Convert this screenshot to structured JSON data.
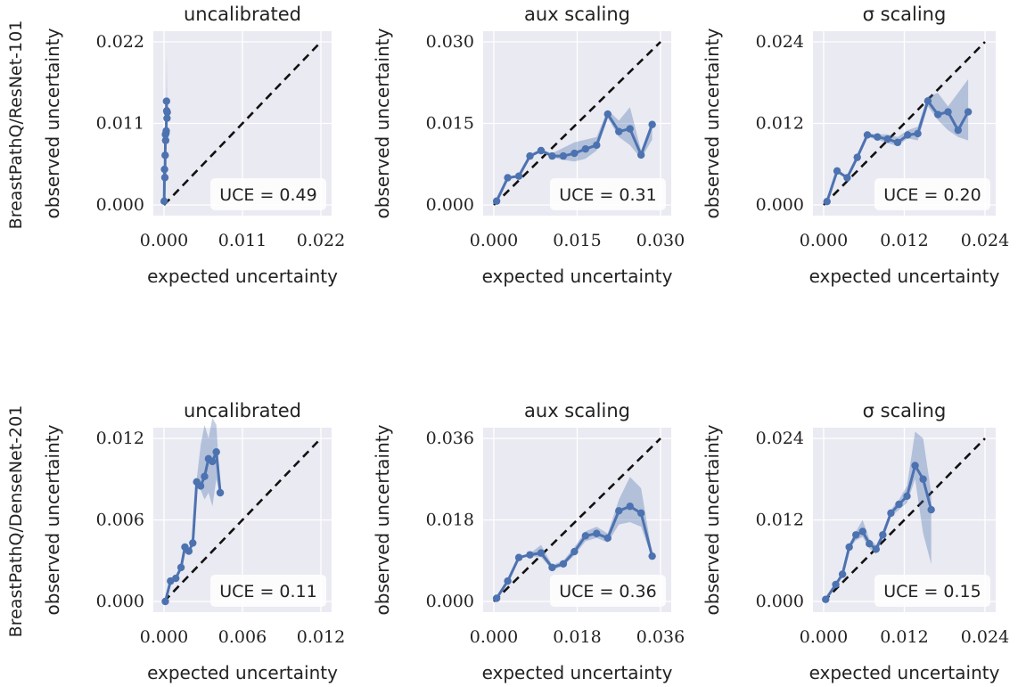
{
  "figure": {
    "row_labels": [
      "BreastPathQ/ResNet-101",
      "BreastPathQ/DenseNet-201"
    ],
    "colors": {
      "panel_bg": "#eaeaf2",
      "grid": "#ffffff",
      "line": "#4c72b0",
      "band": "#4c72b0",
      "diagonal": "#111111"
    }
  },
  "chart_data": [
    {
      "type": "line",
      "title": "uncalibrated",
      "xlabel": "expected uncertainty",
      "ylabel": "observed uncertainty",
      "xlim": [
        0,
        0.022
      ],
      "ylim": [
        0,
        0.022
      ],
      "xticks": [
        "0.000",
        "0.011",
        "0.022"
      ],
      "yticks": [
        "0.000",
        "0.011",
        "0.022"
      ],
      "annotation": "UCE = 0.49",
      "x": [
        2e-05,
        7e-05,
        0.00012,
        0.00016,
        0.0002,
        0.00023,
        0.00027,
        0.00031,
        0.00035,
        0.00038,
        0.00042,
        0.00045
      ],
      "y": [
        0.0005,
        0.0048,
        0.0037,
        0.0067,
        0.0095,
        0.0087,
        0.0097,
        0.01,
        0.014,
        0.0127,
        0.0117,
        0.0125
      ],
      "band_lower": [
        0.0005,
        0.0048,
        0.0037,
        0.0067,
        0.0093,
        0.0085,
        0.0095,
        0.0098,
        0.0105,
        0.011,
        0.0108,
        0.0115
      ],
      "band_upper": [
        0.0005,
        0.0048,
        0.0037,
        0.0067,
        0.0097,
        0.009,
        0.01,
        0.0102,
        0.0175,
        0.021,
        0.014,
        0.0135
      ],
      "diagonal": true
    },
    {
      "type": "line",
      "title": "aux scaling",
      "xlabel": "expected uncertainty",
      "ylabel": "observed uncertainty",
      "xlim": [
        0,
        0.03
      ],
      "ylim": [
        0,
        0.03
      ],
      "xticks": [
        "0.000",
        "0.015",
        "0.030"
      ],
      "yticks": [
        "0.000",
        "0.015",
        "0.030"
      ],
      "annotation": "UCE = 0.31",
      "x": [
        0.0005,
        0.0025,
        0.0045,
        0.0065,
        0.0085,
        0.0105,
        0.0125,
        0.0145,
        0.0165,
        0.0185,
        0.0205,
        0.0225,
        0.0245,
        0.0265,
        0.0285
      ],
      "y": [
        0.0007,
        0.005,
        0.0053,
        0.009,
        0.01,
        0.009,
        0.009,
        0.0095,
        0.0103,
        0.011,
        0.0167,
        0.0135,
        0.014,
        0.0092,
        0.0148
      ],
      "band_lower": [
        0.0007,
        0.005,
        0.0053,
        0.0088,
        0.0098,
        0.0087,
        0.0083,
        0.008,
        0.0085,
        0.01,
        0.016,
        0.0125,
        0.011,
        0.0085,
        0.012
      ],
      "band_upper": [
        0.0007,
        0.005,
        0.0053,
        0.0092,
        0.0102,
        0.0095,
        0.0105,
        0.0115,
        0.012,
        0.0125,
        0.0175,
        0.0155,
        0.018,
        0.01,
        0.0155
      ],
      "diagonal": true
    },
    {
      "type": "line",
      "title": "σ scaling",
      "xlabel": "expected uncertainty",
      "ylabel": "observed uncertainty",
      "xlim": [
        0,
        0.024
      ],
      "ylim": [
        0,
        0.024
      ],
      "xticks": [
        "0.000",
        "0.012",
        "0.024"
      ],
      "yticks": [
        "0.000",
        "0.012",
        "0.024"
      ],
      "annotation": "UCE = 0.20",
      "x": [
        0.0005,
        0.002,
        0.0035,
        0.005,
        0.0065,
        0.008,
        0.0095,
        0.011,
        0.0125,
        0.014,
        0.0155,
        0.017,
        0.0185,
        0.02,
        0.0215
      ],
      "y": [
        0.0005,
        0.005,
        0.004,
        0.007,
        0.0103,
        0.01,
        0.0097,
        0.0092,
        0.0103,
        0.0105,
        0.0153,
        0.0133,
        0.0137,
        0.011,
        0.0137
      ],
      "band_lower": [
        0.0005,
        0.005,
        0.004,
        0.007,
        0.01,
        0.0096,
        0.0091,
        0.0087,
        0.0098,
        0.0095,
        0.0145,
        0.0125,
        0.011,
        0.01,
        0.0095
      ],
      "band_upper": [
        0.0005,
        0.005,
        0.004,
        0.007,
        0.0106,
        0.0104,
        0.0104,
        0.01,
        0.011,
        0.0115,
        0.016,
        0.0165,
        0.0145,
        0.0165,
        0.0185
      ],
      "diagonal": true
    },
    {
      "type": "line",
      "title": "uncalibrated",
      "xlabel": "expected uncertainty",
      "ylabel": "observed uncertainty",
      "xlim": [
        0,
        0.012
      ],
      "ylim": [
        0,
        0.012
      ],
      "xticks": [
        "0.000",
        "0.006",
        "0.012"
      ],
      "yticks": [
        "0.000",
        "0.006",
        "0.012"
      ],
      "annotation": "UCE = 0.11",
      "x": [
        0.0001,
        0.0005,
        0.0009,
        0.0013,
        0.0016,
        0.0019,
        0.0022,
        0.0025,
        0.0028,
        0.0031,
        0.0034,
        0.0037,
        0.004,
        0.0043
      ],
      "y": [
        0.0,
        0.0015,
        0.0017,
        0.0025,
        0.004,
        0.0037,
        0.0043,
        0.0088,
        0.0085,
        0.0092,
        0.0105,
        0.0103,
        0.011,
        0.008
      ],
      "band_lower": [
        0.0,
        0.0015,
        0.0017,
        0.0025,
        0.0038,
        0.0035,
        0.0041,
        0.0085,
        0.0082,
        0.0075,
        0.008,
        0.007,
        0.009,
        0.0078
      ],
      "band_upper": [
        0.0,
        0.0015,
        0.0017,
        0.0025,
        0.0042,
        0.0039,
        0.0045,
        0.009,
        0.0115,
        0.013,
        0.012,
        0.0135,
        0.013,
        0.0082
      ],
      "diagonal": true
    },
    {
      "type": "line",
      "title": "aux scaling",
      "xlabel": "expected uncertainty",
      "ylabel": "observed uncertainty",
      "xlim": [
        0,
        0.036
      ],
      "ylim": [
        0,
        0.036
      ],
      "xticks": [
        "0.000",
        "0.018",
        "0.036"
      ],
      "yticks": [
        "0.000",
        "0.018",
        "0.036"
      ],
      "annotation": "UCE = 0.36",
      "x": [
        0.0006,
        0.003,
        0.0054,
        0.0078,
        0.0102,
        0.0126,
        0.015,
        0.0174,
        0.0198,
        0.0222,
        0.0246,
        0.027,
        0.0294,
        0.0318,
        0.0342
      ],
      "y": [
        0.0007,
        0.0045,
        0.0097,
        0.0103,
        0.0107,
        0.0075,
        0.0083,
        0.011,
        0.0145,
        0.015,
        0.014,
        0.02,
        0.021,
        0.0195,
        0.01
      ],
      "band_lower": [
        0.0007,
        0.0045,
        0.0097,
        0.01,
        0.0098,
        0.007,
        0.0078,
        0.0102,
        0.0133,
        0.014,
        0.013,
        0.017,
        0.0175,
        0.0165,
        0.0095
      ],
      "band_upper": [
        0.0007,
        0.0045,
        0.0097,
        0.0106,
        0.0125,
        0.008,
        0.009,
        0.012,
        0.0155,
        0.0165,
        0.015,
        0.0225,
        0.0275,
        0.025,
        0.0105
      ],
      "diagonal": true
    },
    {
      "type": "line",
      "title": "σ scaling",
      "xlabel": "expected uncertainty",
      "ylabel": "observed uncertainty",
      "xlim": [
        0,
        0.024
      ],
      "ylim": [
        0,
        0.024
      ],
      "xticks": [
        "0.000",
        "0.012",
        "0.024"
      ],
      "yticks": [
        "0.000",
        "0.012",
        "0.024"
      ],
      "annotation": "UCE = 0.15",
      "x": [
        0.0003,
        0.0018,
        0.0028,
        0.0038,
        0.0048,
        0.0058,
        0.0068,
        0.0078,
        0.0088,
        0.01,
        0.0112,
        0.0124,
        0.0136,
        0.0148,
        0.016
      ],
      "y": [
        0.0003,
        0.0025,
        0.004,
        0.008,
        0.0098,
        0.0103,
        0.0085,
        0.0077,
        0.0098,
        0.013,
        0.0143,
        0.0155,
        0.02,
        0.018,
        0.0135
      ],
      "band_lower": [
        0.0003,
        0.0025,
        0.004,
        0.0077,
        0.009,
        0.0095,
        0.0078,
        0.007,
        0.0093,
        0.0125,
        0.0135,
        0.0145,
        0.018,
        0.01,
        0.0055
      ],
      "band_upper": [
        0.0003,
        0.0025,
        0.004,
        0.0083,
        0.0103,
        0.012,
        0.0092,
        0.0083,
        0.0103,
        0.0135,
        0.015,
        0.017,
        0.025,
        0.024,
        0.016
      ],
      "diagonal": true
    }
  ]
}
